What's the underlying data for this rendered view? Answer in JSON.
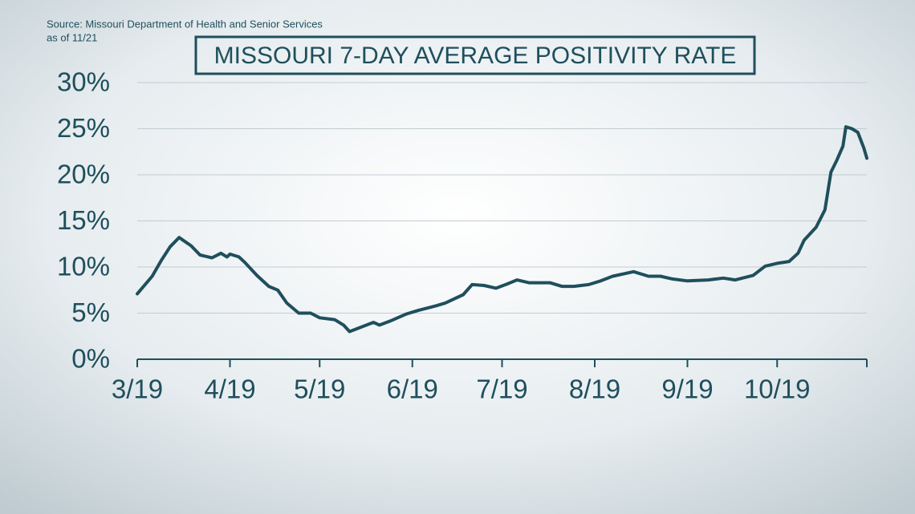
{
  "chart_data": {
    "type": "line",
    "source": "Source: Missouri Department of Health and Senior Services",
    "asof": "as of 11/21",
    "title": "MISSOURI 7-DAY AVERAGE POSITIVITY RATE",
    "x": [
      "3/19",
      "3/24",
      "3/27",
      "3/30",
      "4/2",
      "4/6",
      "4/9",
      "4/13",
      "4/16",
      "4/18",
      "4/19",
      "4/22",
      "4/24",
      "4/28",
      "5/2",
      "5/5",
      "5/8",
      "5/12",
      "5/16",
      "5/19",
      "5/24",
      "5/27",
      "5/29",
      "6/2",
      "6/6",
      "6/8",
      "6/12",
      "6/17",
      "6/21",
      "6/27",
      "6/30",
      "7/6",
      "7/9",
      "7/13",
      "7/17",
      "7/21",
      "7/24",
      "7/28",
      "8/1",
      "8/4",
      "8/8",
      "8/12",
      "8/17",
      "8/21",
      "8/25",
      "9/1",
      "9/6",
      "9/10",
      "9/14",
      "9/19",
      "9/26",
      "10/1",
      "10/5",
      "10/11",
      "10/15",
      "10/19",
      "10/23",
      "10/26",
      "10/28",
      "11/1",
      "11/4",
      "11/6",
      "11/8",
      "11/10",
      "11/11",
      "11/13",
      "11/15",
      "11/17",
      "11/18"
    ],
    "series": [
      {
        "name": "7-day average positivity rate",
        "color": "#1f4f5c",
        "values": [
          7.1,
          9.0,
          10.7,
          12.2,
          13.2,
          12.3,
          11.3,
          11.0,
          11.5,
          11.1,
          11.4,
          11.1,
          10.5,
          9.1,
          7.9,
          7.5,
          6.1,
          5.0,
          5.0,
          4.5,
          4.3,
          3.7,
          3.0,
          3.5,
          4.0,
          3.7,
          4.2,
          4.9,
          5.3,
          5.8,
          6.1,
          7.0,
          8.1,
          8.0,
          7.7,
          8.2,
          8.6,
          8.3,
          8.3,
          8.3,
          7.9,
          7.9,
          8.1,
          8.5,
          9.0,
          9.5,
          9.0,
          9.0,
          8.7,
          8.5,
          8.6,
          8.8,
          8.6,
          9.1,
          10.1,
          10.4,
          10.6,
          11.5,
          12.9,
          14.3,
          16.2,
          20.3,
          21.6,
          23.1,
          25.2,
          25.0,
          24.6,
          22.9,
          21.8
        ]
      }
    ],
    "xlim": [
      "3/19",
      "11/18"
    ],
    "xticks": [
      "3/19",
      "4/19",
      "5/19",
      "6/19",
      "7/19",
      "8/19",
      "9/19",
      "10/19"
    ],
    "ylim": [
      0,
      30
    ],
    "yticks": [
      {
        "value": 0,
        "label": "0%"
      },
      {
        "value": 5,
        "label": "5%"
      },
      {
        "value": 10,
        "label": "10%"
      },
      {
        "value": 15,
        "label": "15%"
      },
      {
        "value": 20,
        "label": "20%"
      },
      {
        "value": 25,
        "label": "25%"
      },
      {
        "value": 30,
        "label": "30%"
      }
    ],
    "grid": true
  }
}
